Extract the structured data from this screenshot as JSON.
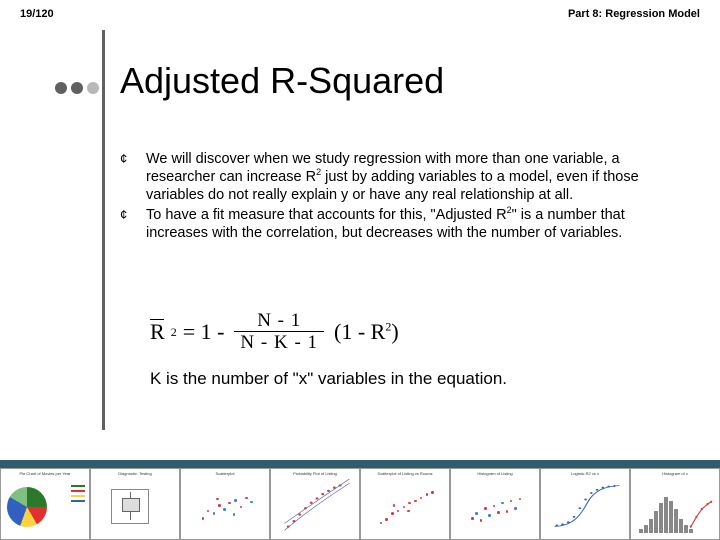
{
  "header": {
    "page_number": "19/120",
    "part_label": "Part 8: Regression Model"
  },
  "dots": {
    "colors": [
      "#606060",
      "#606060",
      "#b8b8b8"
    ]
  },
  "title": "Adjusted R-Squared",
  "bullets": [
    {
      "symbol": "¢",
      "html": "We will discover when we study regression with more than one variable, a researcher can increase R<sup>2</sup> just by adding variables to a model, even if those variables do not really explain y or have any real relationship at all."
    },
    {
      "symbol": "¢",
      "html": "To have a fit measure that accounts for this, \"Adjusted R<sup>2</sup>\" is a number that increases with the correlation, but decreases with the number of variables."
    }
  ],
  "formula": {
    "lhs_base": "R",
    "lhs_sup": "2",
    "equals": "= 1 -",
    "frac_num": "N - 1",
    "frac_den": "N - K - 1",
    "tail_open": "(1 - R",
    "tail_sup": "2",
    "tail_close": ")",
    "k_description": "K is the number of \"x\" variables in the equation."
  },
  "footer": {
    "bar_color": "#2e5d6b",
    "thumbs": [
      {
        "type": "pie",
        "title": "Pie Chart of Movies per Year",
        "legend_colors": [
          "#2a7a2a",
          "#e03030",
          "#ffd040",
          "#3060c0"
        ]
      },
      {
        "type": "boxplot",
        "title": "Diagnostic: Testing"
      },
      {
        "type": "scatter",
        "title": "Scatterplot",
        "points": [
          {
            "x": 15,
            "y": 70,
            "c": "#d04040"
          },
          {
            "x": 22,
            "y": 55,
            "c": "#d04040"
          },
          {
            "x": 30,
            "y": 60,
            "c": "#4080d0"
          },
          {
            "x": 38,
            "y": 45,
            "c": "#d04040"
          },
          {
            "x": 45,
            "y": 52,
            "c": "#4080d0"
          },
          {
            "x": 52,
            "y": 40,
            "c": "#d04040"
          },
          {
            "x": 60,
            "y": 35,
            "c": "#4080d0"
          },
          {
            "x": 68,
            "y": 48,
            "c": "#d04040"
          },
          {
            "x": 75,
            "y": 30,
            "c": "#d04040"
          },
          {
            "x": 82,
            "y": 38,
            "c": "#4080d0"
          },
          {
            "x": 35,
            "y": 32,
            "c": "#d04040"
          },
          {
            "x": 58,
            "y": 62,
            "c": "#4080d0"
          }
        ]
      },
      {
        "type": "scurve",
        "title": "Probability Plot of Listing",
        "curve_color": "#c04040",
        "band_color": "#4060a0",
        "points": [
          {
            "x": 10,
            "y": 88
          },
          {
            "x": 18,
            "y": 78
          },
          {
            "x": 26,
            "y": 66
          },
          {
            "x": 34,
            "y": 54
          },
          {
            "x": 42,
            "y": 44
          },
          {
            "x": 50,
            "y": 36
          },
          {
            "x": 58,
            "y": 28
          },
          {
            "x": 66,
            "y": 22
          },
          {
            "x": 74,
            "y": 16
          },
          {
            "x": 82,
            "y": 12
          }
        ]
      },
      {
        "type": "scatter",
        "title": "Scatterplot of Listing vs Rooms",
        "points": [
          {
            "x": 12,
            "y": 78,
            "c": "#d04040"
          },
          {
            "x": 20,
            "y": 72,
            "c": "#d04040"
          },
          {
            "x": 28,
            "y": 60,
            "c": "#d04040"
          },
          {
            "x": 36,
            "y": 55,
            "c": "#d04040"
          },
          {
            "x": 44,
            "y": 48,
            "c": "#d04040"
          },
          {
            "x": 52,
            "y": 40,
            "c": "#d04040"
          },
          {
            "x": 60,
            "y": 36,
            "c": "#d04040"
          },
          {
            "x": 68,
            "y": 30,
            "c": "#d04040"
          },
          {
            "x": 76,
            "y": 24,
            "c": "#d04040"
          },
          {
            "x": 84,
            "y": 20,
            "c": "#d04040"
          },
          {
            "x": 30,
            "y": 45,
            "c": "#d04040"
          },
          {
            "x": 50,
            "y": 55,
            "c": "#d04040"
          }
        ]
      },
      {
        "type": "scatter",
        "title": "Histogram of Listing",
        "points": [
          {
            "x": 14,
            "y": 70,
            "c": "#d04040"
          },
          {
            "x": 20,
            "y": 60,
            "c": "#4080d0"
          },
          {
            "x": 26,
            "y": 74,
            "c": "#d04040"
          },
          {
            "x": 32,
            "y": 50,
            "c": "#d04040"
          },
          {
            "x": 38,
            "y": 64,
            "c": "#4080d0"
          },
          {
            "x": 44,
            "y": 46,
            "c": "#d04040"
          },
          {
            "x": 50,
            "y": 58,
            "c": "#d04040"
          },
          {
            "x": 56,
            "y": 40,
            "c": "#4080d0"
          },
          {
            "x": 62,
            "y": 56,
            "c": "#d04040"
          },
          {
            "x": 68,
            "y": 36,
            "c": "#d04040"
          },
          {
            "x": 74,
            "y": 50,
            "c": "#4080d0"
          },
          {
            "x": 80,
            "y": 32,
            "c": "#d04040"
          }
        ]
      },
      {
        "type": "logistic",
        "title": "Logistic R2 vs x",
        "curve_color": "#3060c0",
        "points": [
          {
            "x": 8,
            "y": 86,
            "c": "#3060c0"
          },
          {
            "x": 16,
            "y": 84,
            "c": "#3060c0"
          },
          {
            "x": 24,
            "y": 80,
            "c": "#3060c0"
          },
          {
            "x": 32,
            "y": 70,
            "c": "#3060c0"
          },
          {
            "x": 40,
            "y": 54,
            "c": "#3060c0"
          },
          {
            "x": 48,
            "y": 38,
            "c": "#3060c0"
          },
          {
            "x": 56,
            "y": 26,
            "c": "#3060c0"
          },
          {
            "x": 64,
            "y": 20,
            "c": "#3060c0"
          },
          {
            "x": 72,
            "y": 16,
            "c": "#3060c0"
          },
          {
            "x": 80,
            "y": 14,
            "c": "#3060c0"
          },
          {
            "x": 88,
            "y": 13,
            "c": "#3060c0"
          }
        ]
      },
      {
        "type": "hist_combo",
        "title": "Histogram of x",
        "bars": [
          4,
          8,
          14,
          22,
          30,
          36,
          32,
          24,
          14,
          8,
          4
        ],
        "bar_color": "#888888",
        "line_points": [
          {
            "x": 2,
            "y": 84
          },
          {
            "x": 8,
            "y": 60
          },
          {
            "x": 14,
            "y": 40
          },
          {
            "x": 20,
            "y": 28
          },
          {
            "x": 24,
            "y": 22
          }
        ],
        "line_color": "#d04040"
      }
    ]
  }
}
